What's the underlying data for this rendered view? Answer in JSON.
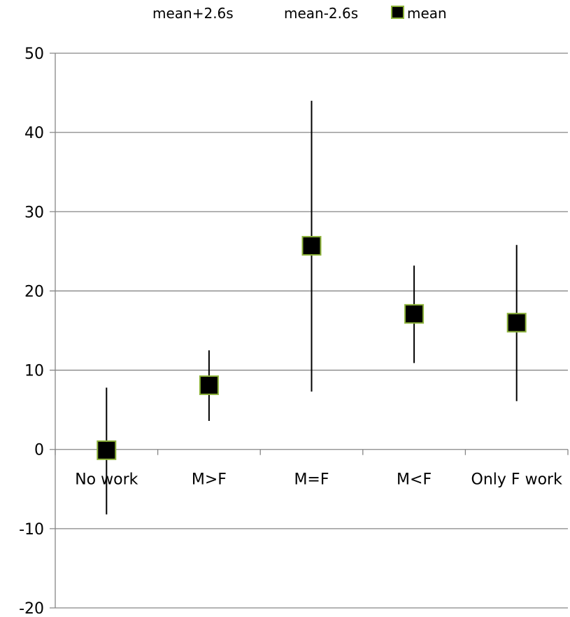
{
  "chart_data": {
    "type": "scatter",
    "title": "",
    "xlabel": "",
    "ylabel": "",
    "categories": [
      "No work",
      "M>F",
      "M=F",
      "M<F",
      "Only F work"
    ],
    "series": [
      {
        "name": "mean+2.6s",
        "values": [
          7.8,
          12.5,
          44.0,
          23.2,
          25.8
        ]
      },
      {
        "name": "mean-2.6s",
        "values": [
          -8.2,
          3.6,
          7.3,
          10.9,
          6.1
        ]
      },
      {
        "name": "mean",
        "values": [
          -0.1,
          8.1,
          25.7,
          17.1,
          16.0
        ]
      }
    ],
    "ylim": [
      -20,
      50
    ],
    "yticks": [
      "-20",
      "-10",
      "0",
      "10",
      "20",
      "30",
      "40",
      "50"
    ],
    "grid": true,
    "legend": "top",
    "colors": {
      "marker_fill": "#000000",
      "marker_border": "#8db33a",
      "line": "#000000",
      "grid": "#868686"
    }
  }
}
